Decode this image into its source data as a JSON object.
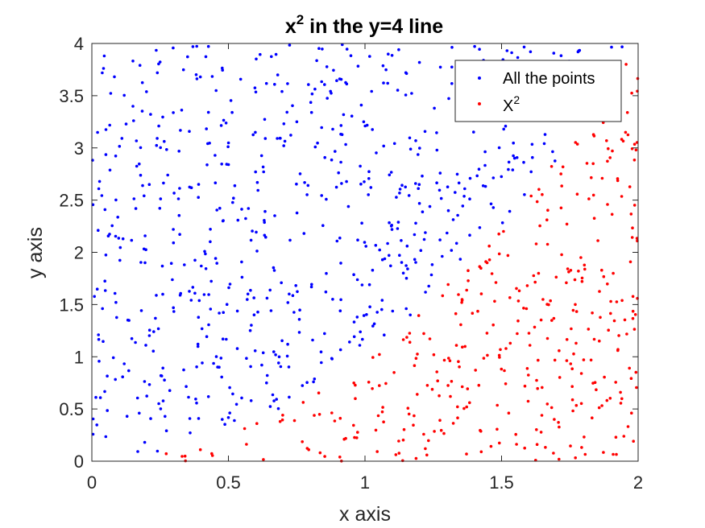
{
  "chart_data": {
    "type": "scatter",
    "title": "x",
    "title_superscript": "2",
    "title_suffix": " in the y=4 line",
    "xlabel": "x axis",
    "ylabel": "y axis",
    "xlim": [
      0,
      2
    ],
    "ylim": [
      0,
      4
    ],
    "xticks": [
      "0",
      "0.5",
      "1",
      "1.5",
      "2"
    ],
    "yticks": [
      "0",
      "0.5",
      "1",
      "1.5",
      "2",
      "2.5",
      "3",
      "3.5",
      "4"
    ],
    "grid": false,
    "legend_position": "top-right",
    "point_count": 1000,
    "boundary": "y = x^2",
    "series": [
      {
        "name": "All the points",
        "color": "#0000ff",
        "condition": "y > x^2"
      },
      {
        "name": "X",
        "name_superscript": "2",
        "color": "#ff0000",
        "condition": "y <= x^2"
      }
    ]
  }
}
